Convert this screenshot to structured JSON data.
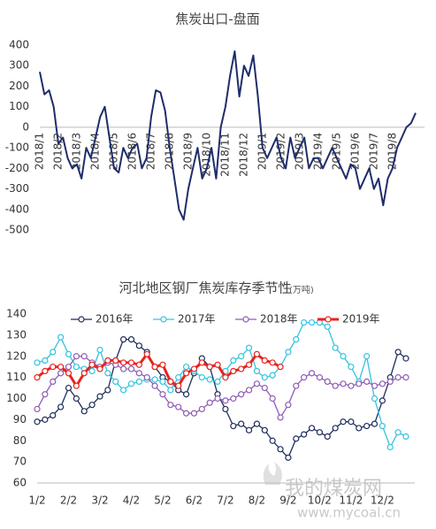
{
  "chart_data": [
    {
      "type": "line",
      "title": "焦炭出口-盘面",
      "categories": [
        "2018/1",
        null,
        null,
        null,
        "2018/2",
        null,
        null,
        null,
        "2018/3",
        null,
        null,
        null,
        "2018/4",
        null,
        null,
        null,
        "2018/5",
        null,
        null,
        null,
        "2018/6",
        null,
        null,
        null,
        "2018/7",
        null,
        null,
        null,
        "2018/8",
        null,
        null,
        null,
        "2018/9",
        null,
        null,
        null,
        "2018/10",
        null,
        null,
        null,
        "2018/11",
        null,
        null,
        null,
        "2018/12",
        null,
        null,
        null,
        "2019/1",
        null,
        null,
        null,
        "2019/2",
        null,
        null,
        null,
        "2019/3",
        null,
        null,
        null,
        "2019/4",
        null,
        null,
        null,
        "2019/5",
        null,
        null,
        null,
        "2019/6",
        null,
        null,
        null,
        "2019/7",
        null,
        null,
        null,
        "2019/8",
        null,
        null,
        null,
        null,
        null
      ],
      "series": [
        {
          "color": "#1f2d6b",
          "values": [
            270,
            160,
            180,
            100,
            -80,
            -50,
            -150,
            -200,
            -180,
            -250,
            -100,
            -150,
            -50,
            50,
            100,
            -50,
            -200,
            -220,
            -100,
            -150,
            -100,
            -80,
            -200,
            -150,
            50,
            180,
            170,
            80,
            -100,
            -250,
            -400,
            -450,
            -300,
            -200,
            -100,
            -250,
            -200,
            -100,
            -250,
            0,
            100,
            250,
            370,
            150,
            300,
            250,
            350,
            150,
            -100,
            -150,
            -100,
            -50,
            -150,
            -200,
            -50,
            -150,
            -100,
            -50,
            -200,
            -150,
            -150,
            -200,
            -150,
            -100,
            -150,
            -200,
            -250,
            -180,
            -200,
            -300,
            -250,
            -200,
            -300,
            -250,
            -380,
            -250,
            -200,
            -100,
            -50,
            0,
            20,
            70
          ]
        }
      ],
      "ylim": [
        -500,
        400
      ],
      "yticks": [
        -500,
        -400,
        -300,
        -200,
        -100,
        0,
        100,
        200,
        300,
        400
      ],
      "grid": false
    },
    {
      "type": "line",
      "title": "河北地区钢厂焦炭库存季节性",
      "subtitle": "(万吨)",
      "categories": [
        "1/2",
        null,
        null,
        null,
        "2/2",
        null,
        null,
        null,
        "3/2",
        null,
        null,
        null,
        "4/2",
        null,
        null,
        null,
        "5/2",
        null,
        null,
        null,
        "6/2",
        null,
        null,
        null,
        "7/2",
        null,
        null,
        null,
        "8/2",
        null,
        null,
        null,
        "9/2",
        null,
        null,
        null,
        "10/2",
        null,
        null,
        null,
        "11/2",
        null,
        null,
        null,
        "12/2",
        null,
        null,
        null
      ],
      "series": [
        {
          "name": "2016年",
          "color": "#1f2d5c",
          "values": [
            89,
            90,
            92,
            96,
            105,
            100,
            94,
            97,
            101,
            104,
            118,
            128,
            128,
            125,
            122,
            115,
            110,
            108,
            104,
            102,
            112,
            119,
            115,
            102,
            95,
            87,
            88,
            85,
            88,
            85,
            80,
            76,
            72,
            81,
            83,
            86,
            84,
            82,
            86,
            89,
            89,
            86,
            87,
            88,
            99,
            110,
            122,
            119
          ]
        },
        {
          "name": "2017年",
          "color": "#33c3e0",
          "values": [
            117,
            118,
            122,
            129,
            121,
            115,
            114,
            113,
            123,
            112,
            108,
            104,
            107,
            108,
            109,
            109,
            108,
            104,
            110,
            115,
            113,
            110,
            109,
            108,
            113,
            118,
            120,
            124,
            113,
            110,
            111,
            115,
            122,
            128,
            136,
            136,
            136,
            134,
            124,
            120,
            115,
            108,
            120,
            100,
            87,
            77,
            84,
            82
          ]
        },
        {
          "name": "2018年",
          "color": "#8e5cb5",
          "values": [
            95,
            102,
            108,
            112,
            115,
            120,
            120,
            117,
            115,
            117,
            116,
            114,
            114,
            112,
            110,
            106,
            102,
            97,
            96,
            93,
            93,
            95,
            98,
            100,
            99,
            100,
            102,
            104,
            107,
            105,
            100,
            91,
            97,
            106,
            110,
            112,
            110,
            108,
            106,
            107,
            106,
            107,
            108,
            106,
            107,
            108,
            110,
            110
          ]
        },
        {
          "name": "2019年",
          "color": "#e8231e",
          "values": [
            110,
            113,
            115,
            115,
            112,
            106,
            112,
            116,
            114,
            118,
            118,
            117,
            117,
            116,
            121,
            115,
            116,
            108,
            106,
            112,
            114,
            117,
            115,
            116,
            110,
            113,
            114,
            116,
            121,
            118,
            117,
            115,
            null,
            null,
            null,
            null,
            null,
            null,
            null,
            null,
            null,
            null,
            null,
            null,
            null,
            null,
            null,
            null
          ]
        }
      ],
      "ylim": [
        60,
        140
      ],
      "yticks": [
        60,
        70,
        80,
        90,
        100,
        110,
        120,
        130,
        140
      ],
      "grid": false,
      "legend": "top"
    }
  ],
  "watermark": {
    "name": "我的煤炭网",
    "url": "www.mycoal.cn"
  }
}
